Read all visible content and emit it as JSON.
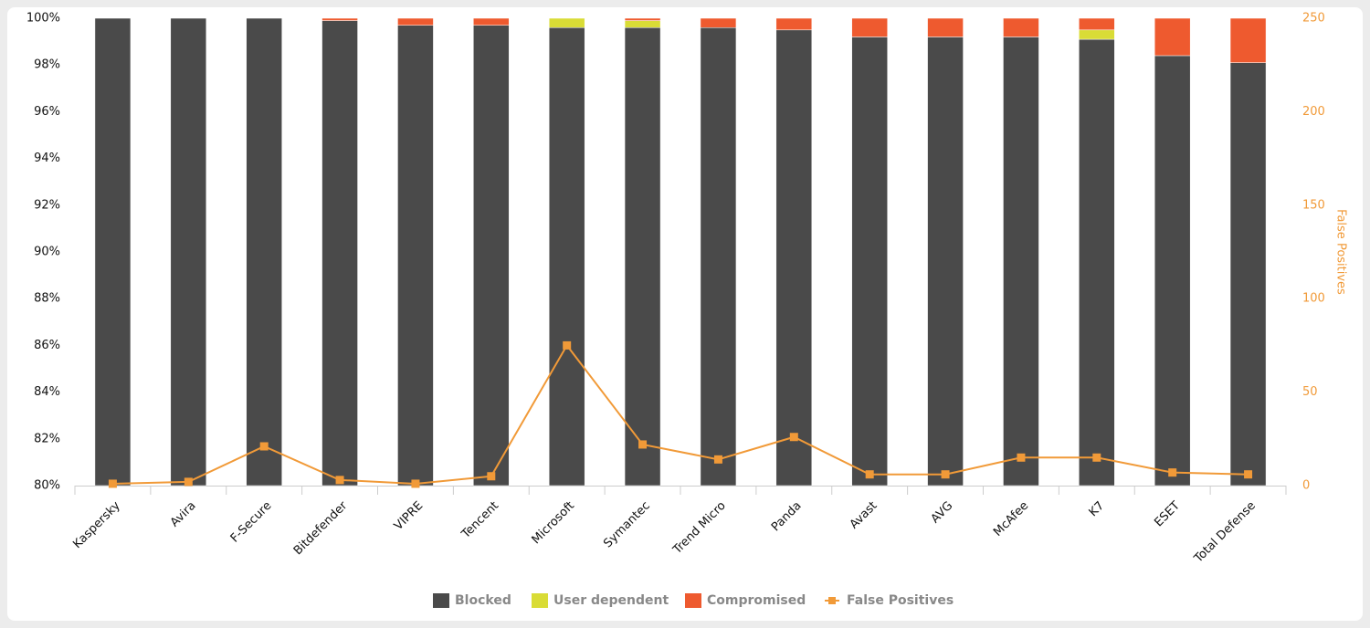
{
  "chart_data": {
    "type": "bar",
    "categories": [
      "Kaspersky",
      "Avira",
      "F-Secure",
      "Bitdefender",
      "VIPRE",
      "Tencent",
      "Microsoft",
      "Symantec",
      "Trend Micro",
      "Panda",
      "Avast",
      "AVG",
      "McAfee",
      "K7",
      "ESET",
      "Total Defense"
    ],
    "stacked": true,
    "series": [
      {
        "name": "Blocked",
        "type": "bar",
        "color": "#4a4a4a",
        "values": [
          100,
          100,
          100,
          99.9,
          99.7,
          99.7,
          99.6,
          99.6,
          99.6,
          99.5,
          99.2,
          99.2,
          99.2,
          99.1,
          98.4,
          98.1
        ]
      },
      {
        "name": "User dependent",
        "type": "bar",
        "color": "#d9dc36",
        "values": [
          0,
          0,
          0,
          0,
          0,
          0,
          0.4,
          0.3,
          0,
          0,
          0,
          0,
          0,
          0.4,
          0,
          0
        ]
      },
      {
        "name": "Compromised",
        "type": "bar",
        "color": "#ee5a2f",
        "values": [
          0,
          0,
          0,
          0.1,
          0.3,
          0.3,
          0,
          0.1,
          0.4,
          0.5,
          0.8,
          0.8,
          0.8,
          0.5,
          1.6,
          1.9
        ]
      },
      {
        "name": "False Positives",
        "type": "line",
        "axis": "y2",
        "color": "#f19a38",
        "values": [
          1,
          2,
          21,
          3,
          1,
          5,
          75,
          22,
          14,
          26,
          6,
          6,
          15,
          15,
          7,
          6
        ]
      }
    ],
    "ylim": [
      80,
      100
    ],
    "yticks": [
      {
        "value": 80,
        "label": "80%"
      },
      {
        "value": 82,
        "label": "82%"
      },
      {
        "value": 84,
        "label": "84%"
      },
      {
        "value": 86,
        "label": "86%"
      },
      {
        "value": 88,
        "label": "88%"
      },
      {
        "value": 90,
        "label": "90%"
      },
      {
        "value": 92,
        "label": "92%"
      },
      {
        "value": 94,
        "label": "94%"
      },
      {
        "value": 96,
        "label": "96%"
      },
      {
        "value": 98,
        "label": "98%"
      },
      {
        "value": 100,
        "label": "100%"
      }
    ],
    "y2lim": [
      0,
      250
    ],
    "y2ticks": [
      0,
      50,
      100,
      150,
      200,
      250
    ],
    "y2label": "False Positives",
    "legend": "bottom"
  }
}
